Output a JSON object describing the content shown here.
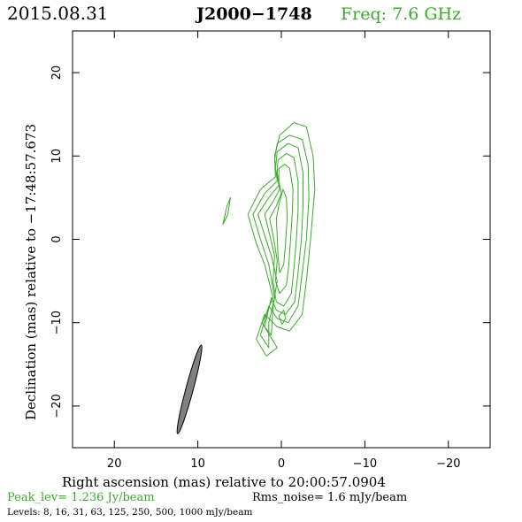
{
  "header": {
    "date": "2015.08.31",
    "source": "J2000−1748",
    "freq": "Freq: 7.6 GHz"
  },
  "footer": {
    "peak": "Peak_lev=  1.236 Jy/beam",
    "rms": "Rms_noise=   1.6 mJy/beam",
    "levels": "Levels:   8,  16,  31,  63, 125, 250, 500, 1000 mJy/beam"
  },
  "colors": {
    "contour": "#3aaa2a",
    "header_freq": "#3aaa2a",
    "peak_text": "#3aaa2a",
    "beam_fill": "#808080",
    "axis": "#000000"
  },
  "chart_data": {
    "type": "contour",
    "xlabel": "Right ascension (mas) relative to 20:00:57.0904",
    "ylabel": "Declination (mas) relative to −17:48:57.673",
    "xlim": [
      25,
      -25
    ],
    "ylim": [
      -25,
      25
    ],
    "xticks": [
      20,
      10,
      0,
      -10,
      -20
    ],
    "xtick_labels": [
      "20",
      "10",
      "0",
      "−10",
      "−20"
    ],
    "yticks": [
      20,
      10,
      0,
      -10,
      -20
    ],
    "ytick_labels": [
      "20",
      "10",
      "0",
      "−10",
      "−20"
    ],
    "contour_levels_mJy": [
      8,
      16,
      31,
      63,
      125,
      250,
      500,
      1000
    ],
    "beam": {
      "center": [
        11,
        -18
      ],
      "major_mas": 11,
      "minor_mas": 0.9,
      "pa_deg": 15
    },
    "contours": [
      [
        [
          0.2,
          12.5
        ],
        [
          -1.5,
          14
        ],
        [
          -3,
          13.5
        ],
        [
          -3.8,
          10
        ],
        [
          -4,
          6
        ],
        [
          -3.5,
          0
        ],
        [
          -3,
          -5
        ],
        [
          -2.5,
          -9
        ],
        [
          -1,
          -11
        ],
        [
          0.5,
          -10.5
        ],
        [
          2,
          -9
        ],
        [
          3,
          -12
        ],
        [
          1.8,
          -14
        ],
        [
          0.5,
          -13
        ],
        [
          2.3,
          -10
        ],
        [
          1,
          -7
        ],
        [
          2,
          -3
        ],
        [
          3,
          -0.5
        ],
        [
          4,
          3
        ],
        [
          2.5,
          6
        ],
        [
          0.7,
          7.5
        ],
        [
          0.8,
          10
        ],
        [
          0.2,
          12.5
        ]
      ],
      [
        [
          0.5,
          11.5
        ],
        [
          -1,
          12.5
        ],
        [
          -2.5,
          12
        ],
        [
          -3.2,
          9
        ],
        [
          -3.3,
          5
        ],
        [
          -3,
          0
        ],
        [
          -2.5,
          -4
        ],
        [
          -2,
          -8
        ],
        [
          -0.8,
          -10
        ],
        [
          0.5,
          -9.5
        ],
        [
          1.5,
          -8
        ],
        [
          2.5,
          -11.5
        ],
        [
          1.5,
          -13
        ],
        [
          1.5,
          -10
        ],
        [
          0.8,
          -7
        ],
        [
          1.5,
          -3
        ],
        [
          2.5,
          0
        ],
        [
          3.4,
          3
        ],
        [
          2,
          5.5
        ],
        [
          0.5,
          7
        ],
        [
          0.8,
          9.5
        ],
        [
          0.5,
          11.5
        ]
      ],
      [
        [
          0.5,
          10.5
        ],
        [
          -0.8,
          11.5
        ],
        [
          -2,
          11
        ],
        [
          -2.6,
          8
        ],
        [
          -2.6,
          4
        ],
        [
          -2.4,
          0
        ],
        [
          -2,
          -4
        ],
        [
          -1.6,
          -7.5
        ],
        [
          -0.5,
          -9
        ],
        [
          0.6,
          -8.5
        ],
        [
          1.2,
          -7
        ],
        [
          2,
          -10.5
        ],
        [
          1.2,
          -11.5
        ],
        [
          1,
          -8
        ],
        [
          0.5,
          -5
        ],
        [
          1.2,
          -2
        ],
        [
          2,
          0.5
        ],
        [
          2.8,
          3
        ],
        [
          1.5,
          5
        ],
        [
          0.3,
          6.5
        ],
        [
          0.7,
          8.5
        ],
        [
          0.5,
          10.5
        ]
      ],
      [
        [
          0.4,
          9.5
        ],
        [
          -0.6,
          10.3
        ],
        [
          -1.5,
          9.8
        ],
        [
          -2,
          7
        ],
        [
          -2,
          3.5
        ],
        [
          -1.8,
          0
        ],
        [
          -1.5,
          -3.5
        ],
        [
          -1.2,
          -6.5
        ],
        [
          -0.3,
          -8
        ],
        [
          0.6,
          -7.5
        ],
        [
          1,
          -5
        ],
        [
          0.8,
          -2
        ],
        [
          1.5,
          1
        ],
        [
          2,
          3
        ],
        [
          1,
          4.5
        ],
        [
          0.2,
          6
        ],
        [
          0.5,
          8
        ],
        [
          0.4,
          9.5
        ]
      ],
      [
        [
          0.3,
          8.5
        ],
        [
          -0.4,
          9
        ],
        [
          -1,
          8.5
        ],
        [
          -1.4,
          6
        ],
        [
          -1.3,
          3
        ],
        [
          -1.1,
          0
        ],
        [
          -0.9,
          -3
        ],
        [
          -0.6,
          -5.5
        ],
        [
          0.2,
          -6.5
        ],
        [
          0.7,
          -5
        ],
        [
          0.5,
          -2.5
        ],
        [
          1,
          0.5
        ],
        [
          1.4,
          2.5
        ],
        [
          0.6,
          4
        ],
        [
          0,
          5.5
        ],
        [
          0.3,
          7
        ],
        [
          0.3,
          8.5
        ]
      ],
      [
        [
          -0.2,
          6
        ],
        [
          -0.6,
          5
        ],
        [
          -0.7,
          2.5
        ],
        [
          -0.5,
          -0.5
        ],
        [
          -0.3,
          -3
        ],
        [
          0.2,
          -4
        ],
        [
          0.4,
          -2
        ],
        [
          0.5,
          0.5
        ],
        [
          0.6,
          2.5
        ],
        [
          0.2,
          4.5
        ],
        [
          -0.2,
          6
        ]
      ],
      [
        [
          -0.3,
          -8.5
        ],
        [
          -0.5,
          -9.5
        ],
        [
          -0.1,
          -10.2
        ],
        [
          0.3,
          -9.2
        ],
        [
          -0.3,
          -8.5
        ]
      ],
      [
        [
          7,
          1.8
        ],
        [
          6.5,
          4
        ],
        [
          6.1,
          5
        ],
        [
          6.4,
          3
        ],
        [
          7,
          1.8
        ]
      ]
    ]
  }
}
